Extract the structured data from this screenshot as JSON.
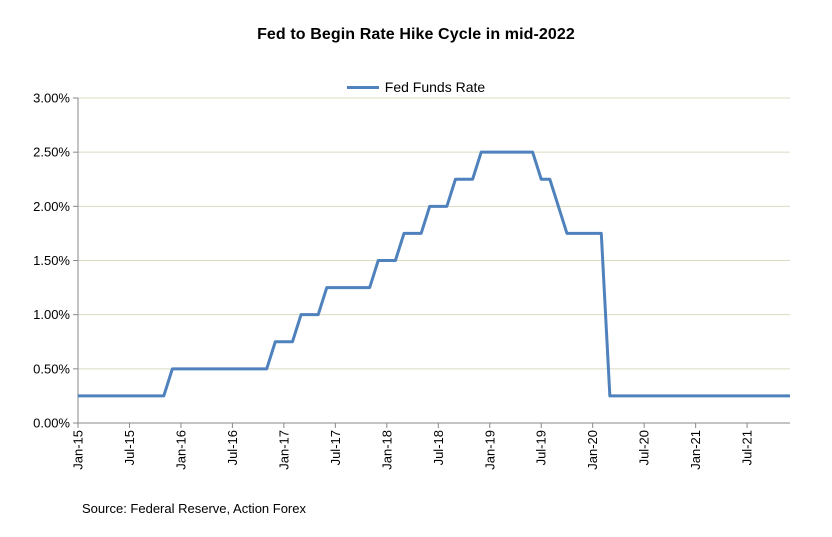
{
  "chart_data": {
    "type": "line",
    "title": "Fed to Begin Rate Hike Cycle in mid-2022",
    "xlabel": "",
    "ylabel": "",
    "x_frequency": "monthly",
    "x_start": "Jan-2015",
    "x_end": "Dec-2021",
    "x_tick_labels": [
      "Jan-15",
      "Jul-15",
      "Jan-16",
      "Jul-16",
      "Jan-17",
      "Jul-17",
      "Jan-18",
      "Jul-18",
      "Jan-19",
      "Jul-19",
      "Jan-20",
      "Jul-20",
      "Jan-21",
      "Jul-21"
    ],
    "x_tick_month_indices": [
      0,
      6,
      12,
      18,
      24,
      30,
      36,
      42,
      48,
      54,
      60,
      66,
      72,
      78
    ],
    "y_tick_labels": [
      "0.00%",
      "0.50%",
      "1.00%",
      "1.50%",
      "2.00%",
      "2.50%",
      "3.00%"
    ],
    "y_tick_values": [
      0.0,
      0.5,
      1.0,
      1.5,
      2.0,
      2.5,
      3.0
    ],
    "ylim": [
      0,
      3
    ],
    "grid": "horizontal",
    "legend_position": "top-center",
    "series": [
      {
        "name": "Fed Funds Rate",
        "color": "#4F81BD",
        "values": [
          0.25,
          0.25,
          0.25,
          0.25,
          0.25,
          0.25,
          0.25,
          0.25,
          0.25,
          0.25,
          0.25,
          0.5,
          0.5,
          0.5,
          0.5,
          0.5,
          0.5,
          0.5,
          0.5,
          0.5,
          0.5,
          0.5,
          0.5,
          0.75,
          0.75,
          0.75,
          1.0,
          1.0,
          1.0,
          1.25,
          1.25,
          1.25,
          1.25,
          1.25,
          1.25,
          1.5,
          1.5,
          1.5,
          1.75,
          1.75,
          1.75,
          2.0,
          2.0,
          2.0,
          2.25,
          2.25,
          2.25,
          2.5,
          2.5,
          2.5,
          2.5,
          2.5,
          2.5,
          2.5,
          2.25,
          2.25,
          2.0,
          1.75,
          1.75,
          1.75,
          1.75,
          1.75,
          0.25,
          0.25,
          0.25,
          0.25,
          0.25,
          0.25,
          0.25,
          0.25,
          0.25,
          0.25,
          0.25,
          0.25,
          0.25,
          0.25,
          0.25,
          0.25,
          0.25,
          0.25,
          0.25,
          0.25,
          0.25,
          0.25
        ]
      }
    ]
  },
  "source_note": "Source: Federal Reserve, Action Forex",
  "colors": {
    "line": "#4F81BD",
    "gridline": "#DBDBC0",
    "axis": "#888888",
    "text": "#000000",
    "background": "#FFFFFF"
  }
}
